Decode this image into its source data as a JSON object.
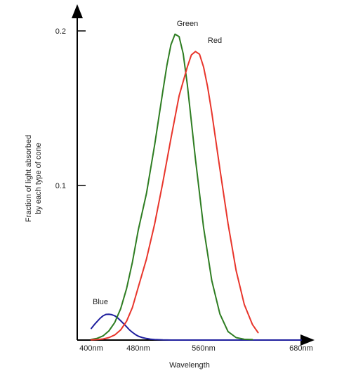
{
  "chart_data": {
    "type": "line",
    "title": "",
    "xlabel": "Wavelength",
    "ylabel_lines": [
      "Fraction of light absorbed",
      "by each type of cone"
    ],
    "x_ticks": [
      {
        "value": 400,
        "label": "400nm"
      },
      {
        "value": 480,
        "label": "480nm"
      },
      {
        "value": 560,
        "label": "560nm"
      },
      {
        "value": 680,
        "label": "680nm"
      }
    ],
    "y_ticks": [
      {
        "value": 0.1,
        "label": "0.1"
      },
      {
        "value": 0.2,
        "label": "0.2"
      }
    ],
    "xlim": [
      400,
      680
    ],
    "ylim": [
      0,
      0.2
    ],
    "grid": false,
    "series": [
      {
        "name": "Blue",
        "color": "#1f1f9e",
        "points": [
          [
            400,
            0.0075
          ],
          [
            405,
            0.0099
          ],
          [
            410,
            0.012
          ],
          [
            415,
            0.0141
          ],
          [
            420,
            0.0157
          ],
          [
            425,
            0.0166
          ],
          [
            430,
            0.0167
          ],
          [
            435,
            0.0164
          ],
          [
            440,
            0.0157
          ],
          [
            445,
            0.0143
          ],
          [
            450,
            0.0125
          ],
          [
            455,
            0.0106
          ],
          [
            460,
            0.0086
          ],
          [
            465,
            0.0066
          ],
          [
            470,
            0.005
          ],
          [
            475,
            0.0036
          ],
          [
            480,
            0.0025
          ],
          [
            485,
            0.0016
          ],
          [
            490,
            0.001
          ],
          [
            495,
            0.0006
          ],
          [
            500,
            0.0003
          ],
          [
            510,
            0.0001
          ],
          [
            520,
            0.0
          ],
          [
            560,
            0.0
          ],
          [
            600,
            0.0
          ],
          [
            640,
            0.0
          ],
          [
            680,
            0.0
          ]
        ]
      },
      {
        "name": "Green",
        "color": "#2e7d22",
        "points": [
          [
            400,
            0.0004
          ],
          [
            410,
            0.0011
          ],
          [
            420,
            0.0027
          ],
          [
            430,
            0.0059
          ],
          [
            440,
            0.0114
          ],
          [
            450,
            0.0203
          ],
          [
            460,
            0.0333
          ],
          [
            470,
            0.0504
          ],
          [
            480,
            0.0713
          ],
          [
            490,
            0.0948
          ],
          [
            500,
            0.1263
          ],
          [
            510,
            0.1609
          ],
          [
            515,
            0.1777
          ],
          [
            520,
            0.1911
          ],
          [
            525,
            0.1979
          ],
          [
            530,
            0.1963
          ],
          [
            535,
            0.1853
          ],
          [
            540,
            0.1653
          ],
          [
            545,
            0.1412
          ],
          [
            550,
            0.117
          ],
          [
            560,
            0.0727
          ],
          [
            570,
            0.0386
          ],
          [
            580,
            0.0169
          ],
          [
            590,
            0.0055
          ],
          [
            600,
            0.0016
          ],
          [
            610,
            0.0005
          ],
          [
            620,
            0.0003
          ]
        ]
      },
      {
        "name": "Red",
        "color": "#e8352b",
        "points": [
          [
            400,
            0.0001
          ],
          [
            410,
            0.0003
          ],
          [
            420,
            0.0007
          ],
          [
            430,
            0.0016
          ],
          [
            440,
            0.0033
          ],
          [
            450,
            0.0066
          ],
          [
            460,
            0.0122
          ],
          [
            470,
            0.0211
          ],
          [
            480,
            0.0343
          ],
          [
            490,
            0.0524
          ],
          [
            500,
            0.0752
          ],
          [
            510,
            0.1019
          ],
          [
            520,
            0.1305
          ],
          [
            530,
            0.158
          ],
          [
            540,
            0.1767
          ],
          [
            545,
            0.1845
          ],
          [
            550,
            0.1867
          ],
          [
            555,
            0.1849
          ],
          [
            560,
            0.1766
          ],
          [
            565,
            0.1636
          ],
          [
            570,
            0.1473
          ],
          [
            580,
            0.1107
          ],
          [
            590,
            0.0753
          ],
          [
            600,
            0.045
          ],
          [
            610,
            0.0231
          ],
          [
            620,
            0.0101
          ],
          [
            627,
            0.0048
          ]
        ]
      }
    ]
  }
}
